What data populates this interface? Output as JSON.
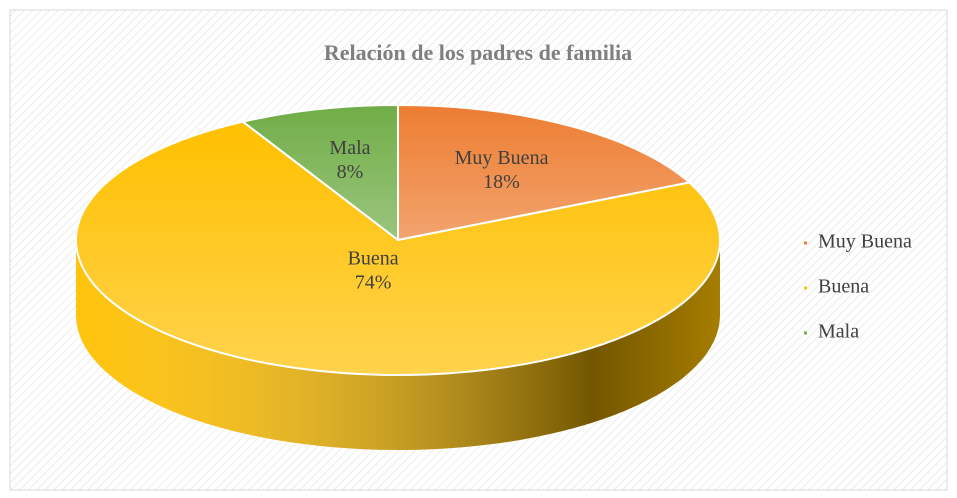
{
  "chart_data": {
    "type": "pie",
    "title": "Relación de los padres de familia",
    "categories": [
      "Muy Buena",
      "Buena",
      "Mala"
    ],
    "values": [
      18,
      74,
      8
    ],
    "value_labels": [
      "18%",
      "74%",
      "8%"
    ],
    "colors": [
      "#ed7d31",
      "#ffc000",
      "#70ad47"
    ],
    "legend": "right"
  }
}
